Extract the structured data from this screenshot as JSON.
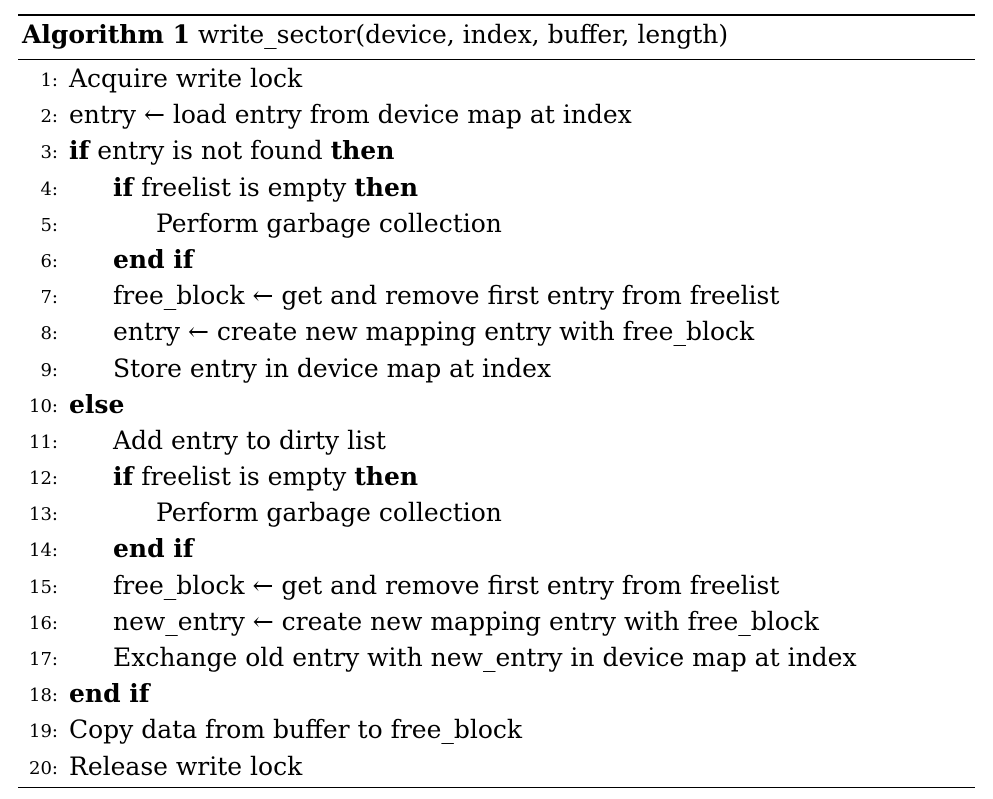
{
  "algorithm": {
    "label": "Algorithm 1",
    "signature": "write_sector(device, index, buffer, length)",
    "lines": [
      {
        "num": "1:",
        "indent": 0,
        "parts": [
          {
            "t": "Acquire write lock"
          }
        ]
      },
      {
        "num": "2:",
        "indent": 0,
        "parts": [
          {
            "t": "entry ← load entry from device map at index"
          }
        ]
      },
      {
        "num": "3:",
        "indent": 0,
        "parts": [
          {
            "t": "if",
            "kw": true
          },
          {
            "t": " entry is not found "
          },
          {
            "t": "then",
            "kw": true
          }
        ]
      },
      {
        "num": "4:",
        "indent": 1,
        "parts": [
          {
            "t": "if",
            "kw": true
          },
          {
            "t": " freelist is empty "
          },
          {
            "t": "then",
            "kw": true
          }
        ]
      },
      {
        "num": "5:",
        "indent": 2,
        "parts": [
          {
            "t": "Perform garbage collection"
          }
        ]
      },
      {
        "num": "6:",
        "indent": 1,
        "parts": [
          {
            "t": "end if",
            "kw": true
          }
        ]
      },
      {
        "num": "7:",
        "indent": 1,
        "parts": [
          {
            "t": "free_block ← get and remove first entry from freelist"
          }
        ]
      },
      {
        "num": "8:",
        "indent": 1,
        "parts": [
          {
            "t": "entry ← create new mapping entry with free_block"
          }
        ]
      },
      {
        "num": "9:",
        "indent": 1,
        "parts": [
          {
            "t": "Store entry in device map at index"
          }
        ]
      },
      {
        "num": "10:",
        "indent": 0,
        "parts": [
          {
            "t": "else",
            "kw": true
          }
        ]
      },
      {
        "num": "11:",
        "indent": 1,
        "parts": [
          {
            "t": "Add entry to dirty list"
          }
        ]
      },
      {
        "num": "12:",
        "indent": 1,
        "parts": [
          {
            "t": "if",
            "kw": true
          },
          {
            "t": " freelist is empty "
          },
          {
            "t": "then",
            "kw": true
          }
        ]
      },
      {
        "num": "13:",
        "indent": 2,
        "parts": [
          {
            "t": "Perform garbage collection"
          }
        ]
      },
      {
        "num": "14:",
        "indent": 1,
        "parts": [
          {
            "t": "end if",
            "kw": true
          }
        ]
      },
      {
        "num": "15:",
        "indent": 1,
        "parts": [
          {
            "t": "free_block ← get and remove first entry from freelist"
          }
        ]
      },
      {
        "num": "16:",
        "indent": 1,
        "parts": [
          {
            "t": "new_entry ← create new mapping entry with free_block"
          }
        ]
      },
      {
        "num": "17:",
        "indent": 1,
        "parts": [
          {
            "t": "Exchange old entry with new_entry in device map at index"
          }
        ]
      },
      {
        "num": "18:",
        "indent": 0,
        "parts": [
          {
            "t": "end if",
            "kw": true
          }
        ]
      },
      {
        "num": "19:",
        "indent": 0,
        "parts": [
          {
            "t": "Copy data from buffer to free_block"
          }
        ]
      },
      {
        "num": "20:",
        "indent": 0,
        "parts": [
          {
            "t": "Release write lock"
          }
        ]
      }
    ]
  }
}
